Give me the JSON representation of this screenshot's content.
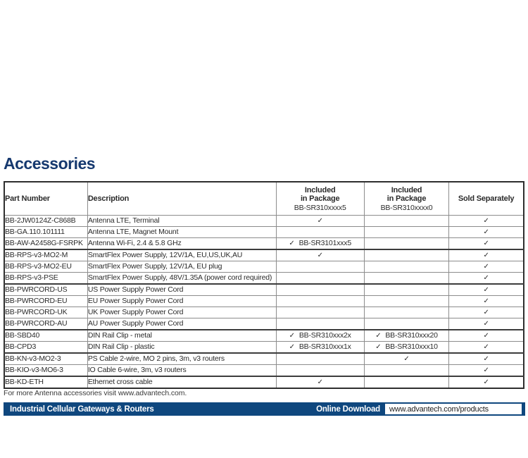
{
  "page": {
    "title": "Accessories"
  },
  "colors": {
    "navy_title": "#16396f",
    "footer_bar": "#0f477e",
    "check": "#2b2b2b"
  },
  "table": {
    "headers": {
      "part_number": "Part Number",
      "description": "Description",
      "included5_line1": "Included",
      "included5_line2": "in Package",
      "included5_line3": "BB-SR310xxxx5",
      "included0_line1": "Included",
      "included0_line2": "in Package",
      "included0_line3": "BB-SR310xxxx0",
      "sold_separately": "Sold Separately"
    },
    "check_symbol": "✓",
    "rows": [
      {
        "part": "BB-2JW0124Z-C868B",
        "desc": "Antenna LTE, Terminal",
        "pkg5_check": true,
        "pkg5_label": "",
        "pkg0_check": false,
        "pkg0_label": "",
        "sold_check": true,
        "group_end": false
      },
      {
        "part": "BB-GA.110.101111",
        "desc": "Antenna LTE, Magnet Mount",
        "pkg5_check": false,
        "pkg5_label": "",
        "pkg0_check": false,
        "pkg0_label": "",
        "sold_check": true,
        "group_end": false
      },
      {
        "part": "BB-AW-A2458G-FSRPK",
        "desc": "Antenna Wi-Fi, 2.4 & 5.8 GHz",
        "pkg5_check": true,
        "pkg5_label": "BB-SR3101xxx5",
        "pkg0_check": false,
        "pkg0_label": "",
        "sold_check": true,
        "group_end": true
      },
      {
        "part": "BB-RPS-v3-MO2-M",
        "desc": "SmartFlex Power Supply, 12V/1A, EU,US,UK,AU",
        "pkg5_check": true,
        "pkg5_label": "",
        "pkg0_check": false,
        "pkg0_label": "",
        "sold_check": true,
        "group_end": false
      },
      {
        "part": "BB-RPS-v3-MO2-EU",
        "desc": "SmartFlex Power Supply, 12V/1A, EU plug",
        "pkg5_check": false,
        "pkg5_label": "",
        "pkg0_check": false,
        "pkg0_label": "",
        "sold_check": true,
        "group_end": false
      },
      {
        "part": "BB-RPS-v3-PSE",
        "desc": "SmartFlex Power Supply, 48V/1.35A (power cord required)",
        "pkg5_check": false,
        "pkg5_label": "",
        "pkg0_check": false,
        "pkg0_label": "",
        "sold_check": true,
        "group_end": true
      },
      {
        "part": "BB-PWRCORD-US",
        "desc": "US Power Supply Power Cord",
        "pkg5_check": false,
        "pkg5_label": "",
        "pkg0_check": false,
        "pkg0_label": "",
        "sold_check": true,
        "group_end": false
      },
      {
        "part": "BB-PWRCORD-EU",
        "desc": "EU Power Supply Power Cord",
        "pkg5_check": false,
        "pkg5_label": "",
        "pkg0_check": false,
        "pkg0_label": "",
        "sold_check": true,
        "group_end": false
      },
      {
        "part": "BB-PWRCORD-UK",
        "desc": "UK Power Supply Power Cord",
        "pkg5_check": false,
        "pkg5_label": "",
        "pkg0_check": false,
        "pkg0_label": "",
        "sold_check": true,
        "group_end": false
      },
      {
        "part": "BB-PWRCORD-AU",
        "desc": "AU Power Supply Power Cord",
        "pkg5_check": false,
        "pkg5_label": "",
        "pkg0_check": false,
        "pkg0_label": "",
        "sold_check": true,
        "group_end": true
      },
      {
        "part": "BB-SBD40",
        "desc": "DIN Rail Clip - metal",
        "pkg5_check": true,
        "pkg5_label": "BB-SR310xxx2x",
        "pkg0_check": true,
        "pkg0_label": "BB-SR310xxx20",
        "sold_check": true,
        "group_end": false
      },
      {
        "part": "BB-CPD3",
        "desc": "DIN Rail Clip - plastic",
        "pkg5_check": true,
        "pkg5_label": "BB-SR310xxx1x",
        "pkg0_check": true,
        "pkg0_label": "BB-SR310xxx10",
        "sold_check": true,
        "group_end": true
      },
      {
        "part": "BB-KN-v3-MO2-3",
        "desc": "PS Cable 2-wire, MO 2 pins, 3m, v3 routers",
        "pkg5_check": false,
        "pkg5_label": "",
        "pkg0_check": true,
        "pkg0_label": "",
        "sold_check": true,
        "group_end": false
      },
      {
        "part": "BB-KIO-v3-MO6-3",
        "desc": "IO Cable 6-wire, 3m, v3 routers",
        "pkg5_check": false,
        "pkg5_label": "",
        "pkg0_check": false,
        "pkg0_label": "",
        "sold_check": true,
        "group_end": true
      },
      {
        "part": "BB-KD-ETH",
        "desc": "Ethernet cross cable",
        "pkg5_check": true,
        "pkg5_label": "",
        "pkg0_check": false,
        "pkg0_label": "",
        "sold_check": true,
        "group_end": false
      }
    ]
  },
  "note": "For more Antenna accessories visit www.advantech.com.",
  "footer": {
    "product_line": "Industrial Cellular Gateways & Routers",
    "download_label": "Online Download",
    "download_url": "www.advantech.com/products"
  }
}
